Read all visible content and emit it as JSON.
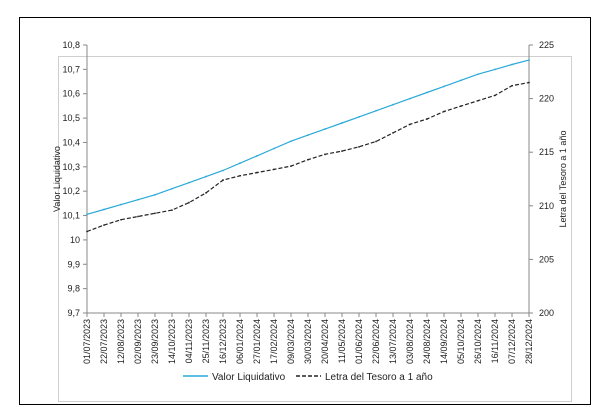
{
  "chart_data": {
    "type": "line",
    "x": [
      "01/07/2023",
      "22/07/2023",
      "12/08/2023",
      "02/09/2023",
      "23/09/2023",
      "14/10/2023",
      "04/11/2023",
      "25/11/2023",
      "16/12/2023",
      "06/01/2024",
      "27/01/2024",
      "17/02/2024",
      "09/03/2024",
      "30/03/2024",
      "20/04/2024",
      "11/05/2024",
      "01/06/2024",
      "22/06/2024",
      "13/07/2024",
      "03/08/2024",
      "24/08/2024",
      "14/09/2024",
      "05/10/2024",
      "26/10/2024",
      "16/11/2024",
      "07/12/2024",
      "28/12/2024"
    ],
    "y_left": {
      "label": "Valor Liquidativo",
      "range": [
        9.7,
        10.8
      ],
      "ticks": [
        "9,7",
        "9,8",
        "9,9",
        "10",
        "10,1",
        "10,2",
        "10,3",
        "10,4",
        "10,5",
        "10,6",
        "10,7",
        "10,8"
      ]
    },
    "y_right": {
      "label": "Letra del Tesoro a 1 año",
      "range": [
        200,
        225
      ],
      "ticks": [
        "200",
        "205",
        "210",
        "215",
        "220",
        "225"
      ]
    },
    "series": [
      {
        "name": "Valor Liquidativo",
        "axis": "left",
        "color": "#29a9d9",
        "style": "solid",
        "values": [
          10.105,
          10.125,
          10.145,
          10.165,
          10.185,
          10.21,
          10.235,
          10.26,
          10.285,
          10.315,
          10.345,
          10.375,
          10.405,
          10.43,
          10.455,
          10.48,
          10.505,
          10.53,
          10.555,
          10.58,
          10.605,
          10.63,
          10.655,
          10.68,
          10.7,
          10.72,
          10.738
        ]
      },
      {
        "name": "Letra del Tesoro a 1 año",
        "axis": "right",
        "color": "#222222",
        "style": "dashed",
        "values": [
          207.6,
          208.2,
          208.7,
          209.0,
          209.3,
          209.6,
          210.3,
          211.2,
          212.4,
          212.8,
          213.1,
          213.4,
          213.7,
          214.3,
          214.8,
          215.1,
          215.5,
          216.0,
          216.8,
          217.6,
          218.1,
          218.8,
          219.3,
          219.8,
          220.3,
          221.2,
          221.5
        ]
      }
    ],
    "legend_position": "bottom",
    "grid": false
  }
}
